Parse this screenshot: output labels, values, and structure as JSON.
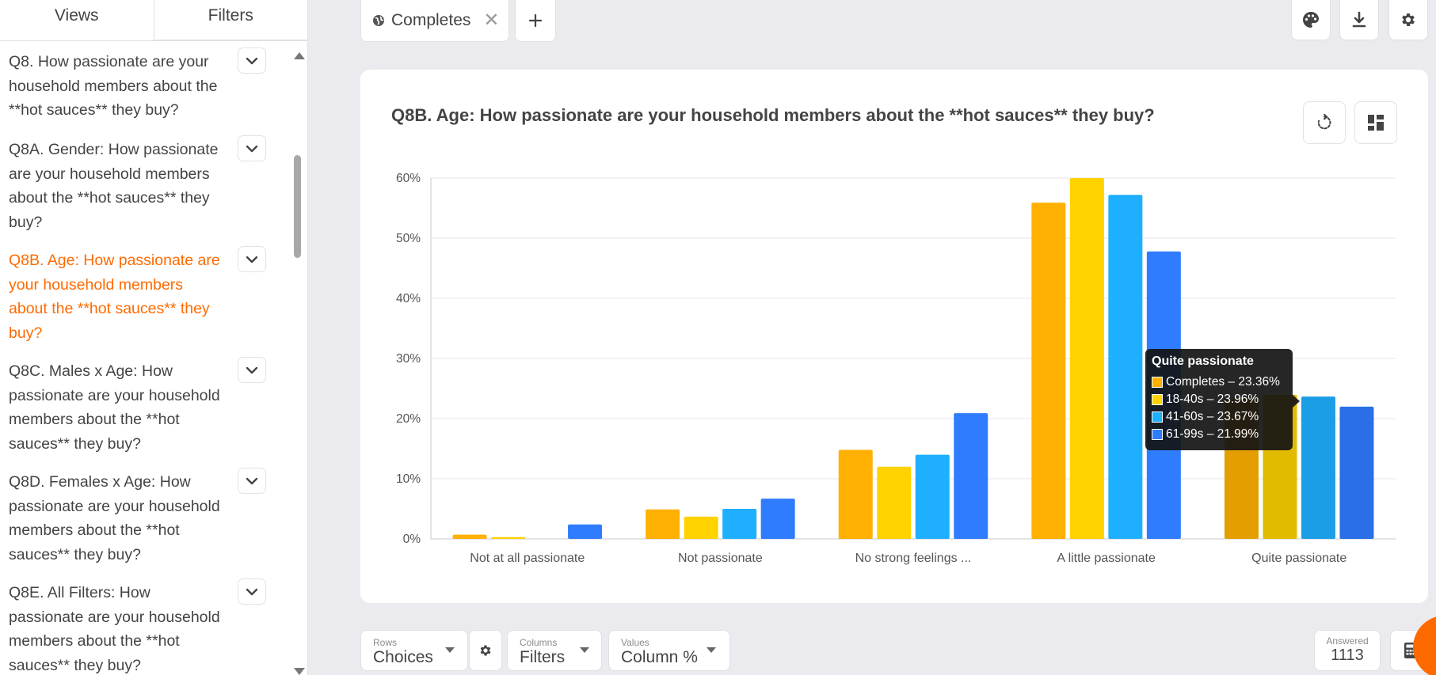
{
  "sidebar": {
    "tabs": [
      {
        "label": "Views"
      },
      {
        "label": "Filters"
      }
    ],
    "questions": [
      {
        "text": "Q8. How passionate are your household members about the **hot sauces** they buy?",
        "lines": [
          "Q8. How passionate are your",
          "household members about the",
          "**hot sauces** they buy?"
        ]
      },
      {
        "text": "Q8A. Gender: How passionate are your household members about the **hot sauces** they buy?",
        "lines": [
          "Q8A. Gender: How passionate",
          "are your household members",
          "about the **hot sauces** they",
          "buy?"
        ]
      },
      {
        "text": "Q8B. Age: How passionate are your household members about the **hot sauces** they buy?",
        "lines": [
          "Q8B. Age: How passionate are",
          "your household members",
          "about the **hot sauces** they",
          "buy?"
        ]
      },
      {
        "text": "Q8C. Males x Age: How passionate are your household members about the **hot sauces** they buy?",
        "lines": [
          "Q8C. Males x Age: How",
          "passionate are your household",
          "members about the **hot",
          "sauces** they buy?"
        ]
      },
      {
        "text": "Q8D. Females x Age: How passionate are your household members about the **hot sauces** they buy?",
        "lines": [
          "Q8D. Females x Age: How",
          "passionate are your household",
          "members about the **hot",
          "sauces** they buy?"
        ]
      },
      {
        "text": "Q8E. All Filters: How passionate are your household members about the **hot sauces** they buy?",
        "lines": [
          "Q8E. All Filters: How",
          "passionate are your household",
          "members about the **hot",
          "sauces** they buy?"
        ]
      }
    ],
    "active_index": 2
  },
  "topbar": {
    "filter_chip": "Completes",
    "close_glyph": "✕",
    "add_glyph": "+"
  },
  "card": {
    "title": "Q8B. Age: How passionate are your household members about the **hot sauces** they buy?"
  },
  "colors": {
    "completes": "#FFB000",
    "age_18_40": "#FFD200",
    "age_41_60": "#1FAFFF",
    "age_61_99": "#2F7CFF",
    "accent": "#FF6A00"
  },
  "chart_data": {
    "type": "bar",
    "title": "Q8B. Age: How passionate are your household members about the **hot sauces** they buy?",
    "categories": [
      "Not at all passionate",
      "Not passionate",
      "No strong feelings ...",
      "A little passionate",
      "Quite passionate"
    ],
    "series": [
      {
        "name": "Completes",
        "color": "#FFB000",
        "values": [
          0.7,
          4.9,
          14.8,
          55.9,
          23.36
        ]
      },
      {
        "name": "18-40s",
        "color": "#FFD200",
        "values": [
          0.3,
          3.7,
          12.0,
          60.0,
          23.96
        ]
      },
      {
        "name": "41-60s",
        "color": "#1FAFFF",
        "values": [
          0.0,
          5.0,
          14.0,
          57.2,
          23.67
        ]
      },
      {
        "name": "61-99s",
        "color": "#2F7CFF",
        "values": [
          2.4,
          6.7,
          20.9,
          47.8,
          21.99
        ]
      }
    ],
    "highlighted_category_index": 4,
    "ylim": [
      0,
      60
    ],
    "yticks": [
      0,
      10,
      20,
      30,
      40,
      50,
      60
    ],
    "ytick_labels": [
      "0%",
      "10%",
      "20%",
      "30%",
      "40%",
      "50%",
      "60%"
    ],
    "xlabel": "",
    "ylabel": "",
    "grid": true
  },
  "tooltip": {
    "title": "Quite passionate",
    "rows": [
      {
        "label": "Completes – 23.36%",
        "color": "#FFB000"
      },
      {
        "label": "18-40s – 23.96%",
        "color": "#FFD200"
      },
      {
        "label": "41-60s – 23.67%",
        "color": "#1FAFFF"
      },
      {
        "label": "61-99s – 21.99%",
        "color": "#2F7CFF"
      }
    ]
  },
  "bottom": {
    "rows": {
      "label": "Rows",
      "value": "Choices"
    },
    "columns": {
      "label": "Columns",
      "value": "Filters"
    },
    "values": {
      "label": "Values",
      "value": "Column %"
    },
    "answered": {
      "label": "Answered",
      "value": "1113"
    }
  }
}
